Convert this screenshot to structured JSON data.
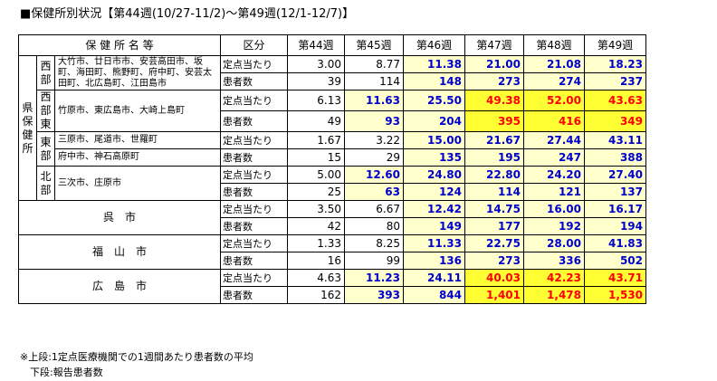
{
  "title": "■保健所別状況【第44週(10/27-11/2)～第49週(12/1-12/7)】",
  "header": {
    "name": "保 健 所 名 等",
    "kubun": "区分",
    "weeks": [
      "第44週",
      "第45週",
      "第46週",
      "第47週",
      "第48週",
      "第49週"
    ]
  },
  "group_label": "県保健所",
  "districts": [
    {
      "name": "西部",
      "areas": [
        "大竹市、廿日市市、安芸高田市、坂町、海田町、熊野町、府中町、安芸太田町、北広島町、江田島市"
      ],
      "rows": [
        {
          "kubun": "定点当たり",
          "values": [
            "3.00",
            "8.77",
            "11.38",
            "21.00",
            "21.08",
            "18.23"
          ]
        },
        {
          "kubun": "患者数",
          "values": [
            "39",
            "114",
            "148",
            "273",
            "274",
            "237"
          ]
        }
      ]
    },
    {
      "name": "西部東",
      "areas": [
        "竹原市、東広島市、大崎上島町"
      ],
      "rows": [
        {
          "kubun": "定点当たり",
          "values": [
            "6.13",
            "11.63",
            "25.50",
            "49.38",
            "52.00",
            "43.63"
          ]
        },
        {
          "kubun": "患者数",
          "values": [
            "49",
            "93",
            "204",
            "395",
            "416",
            "349"
          ]
        }
      ]
    },
    {
      "name": "東部",
      "areas": [
        "三原市、尾道市、世羅町",
        "府中市、神石高原町"
      ],
      "rows": [
        {
          "kubun": "定点当たり",
          "values": [
            "1.67",
            "3.22",
            "15.00",
            "21.67",
            "27.44",
            "43.11"
          ]
        },
        {
          "kubun": "患者数",
          "values": [
            "15",
            "29",
            "135",
            "195",
            "247",
            "388"
          ]
        }
      ]
    },
    {
      "name": "北部",
      "areas": [
        "三次市、庄原市"
      ],
      "rows": [
        {
          "kubun": "定点当たり",
          "values": [
            "5.00",
            "12.60",
            "24.80",
            "22.80",
            "24.20",
            "27.40"
          ]
        },
        {
          "kubun": "患者数",
          "values": [
            "25",
            "63",
            "124",
            "114",
            "121",
            "137"
          ]
        }
      ]
    }
  ],
  "cities": [
    {
      "name": "呉　市",
      "rows": [
        {
          "kubun": "定点当たり",
          "values": [
            "3.50",
            "6.67",
            "12.42",
            "14.75",
            "16.00",
            "16.17"
          ]
        },
        {
          "kubun": "患者数",
          "values": [
            "42",
            "80",
            "149",
            "177",
            "192",
            "194"
          ]
        }
      ]
    },
    {
      "name": "福　山　市",
      "rows": [
        {
          "kubun": "定点当たり",
          "values": [
            "1.33",
            "8.25",
            "11.33",
            "22.75",
            "28.00",
            "41.83"
          ]
        },
        {
          "kubun": "患者数",
          "values": [
            "16",
            "99",
            "136",
            "273",
            "336",
            "502"
          ]
        }
      ]
    },
    {
      "name": "広　島　市",
      "rows": [
        {
          "kubun": "定点当たり",
          "values": [
            "4.63",
            "11.23",
            "24.11",
            "40.03",
            "42.23",
            "43.71"
          ]
        },
        {
          "kubun": "患者数",
          "values": [
            "162",
            "393",
            "844",
            "1,401",
            "1,478",
            "1,530"
          ]
        }
      ]
    }
  ],
  "footnotes": [
    "※上段:1定点医療機関での1週間あたり患者数の平均",
    "　下段:報告患者数"
  ]
}
